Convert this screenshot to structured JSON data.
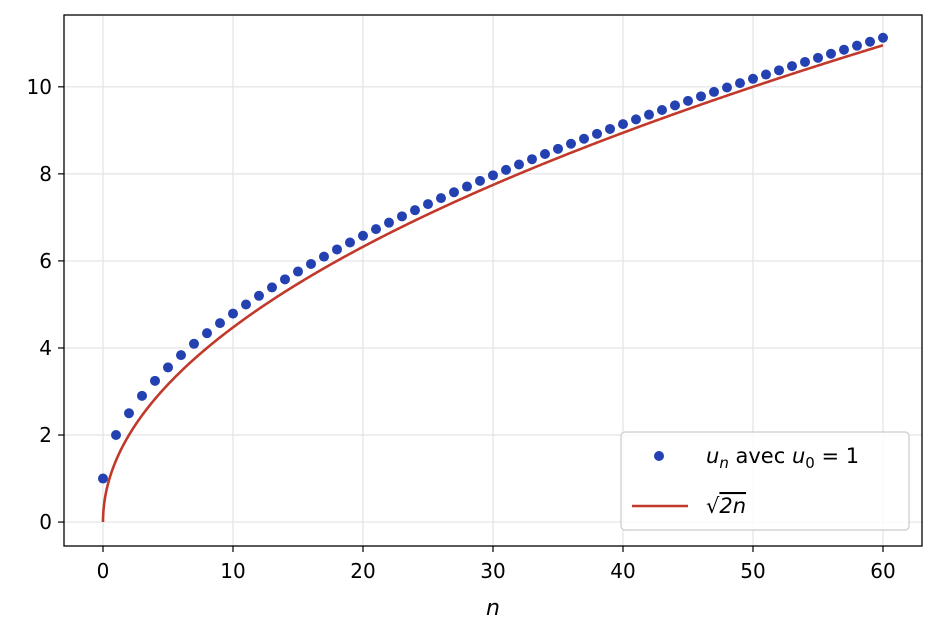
{
  "chart_data": {
    "type": "scatter",
    "title": "",
    "xlabel": "n",
    "ylabel": "",
    "xlim": [
      -3,
      63
    ],
    "ylim": [
      -0.55,
      11.65
    ],
    "xticks": [
      0,
      10,
      20,
      30,
      40,
      50,
      60
    ],
    "yticks": [
      0,
      2,
      4,
      6,
      8,
      10
    ],
    "grid": true,
    "legend_position": "lower right",
    "colors": {
      "points": "#2341b0",
      "curve": "#c0392b"
    },
    "series": [
      {
        "name": "u_n avec u_0 = 1",
        "kind": "points",
        "x": [
          0,
          1,
          2,
          3,
          4,
          5,
          6,
          7,
          8,
          9,
          10,
          11,
          12,
          13,
          14,
          15,
          16,
          17,
          18,
          19,
          20,
          21,
          22,
          23,
          24,
          25,
          26,
          27,
          28,
          29,
          30,
          31,
          32,
          33,
          34,
          35,
          36,
          37,
          38,
          39,
          40,
          41,
          42,
          43,
          44,
          45,
          46,
          47,
          48,
          49,
          50,
          51,
          52,
          53,
          54,
          55,
          56,
          57,
          58,
          59,
          60
        ],
        "y": [
          1.0,
          2.0,
          2.5,
          2.9,
          3.245,
          3.553,
          3.835,
          4.096,
          4.34,
          4.571,
          4.79,
          4.999,
          5.199,
          5.391,
          5.577,
          5.756,
          5.93,
          6.099,
          6.263,
          6.423,
          6.578,
          6.73,
          6.879,
          7.024,
          7.166,
          7.306,
          7.443,
          7.577,
          7.709,
          7.839,
          7.966,
          8.092,
          8.215,
          8.337,
          8.457,
          8.575,
          8.692,
          8.807,
          8.92,
          9.032,
          9.143,
          9.252,
          9.36,
          9.467,
          9.573,
          9.677,
          9.781,
          9.883,
          9.984,
          10.085,
          10.184,
          10.282,
          10.379,
          10.476,
          10.571,
          10.666,
          10.76,
          10.853,
          10.945,
          11.036,
          11.127
        ]
      },
      {
        "name": "√2n",
        "kind": "curve",
        "function": "sqrt(2n)",
        "x_range": [
          0,
          60
        ]
      }
    ]
  },
  "legend": {
    "points_label": {
      "var": "u",
      "sub": "n",
      "mid": " avec ",
      "var2": "u",
      "sub2": "0",
      "eq": " = 1"
    },
    "curve_label": {
      "radical": "√",
      "radicand": "2n"
    }
  }
}
